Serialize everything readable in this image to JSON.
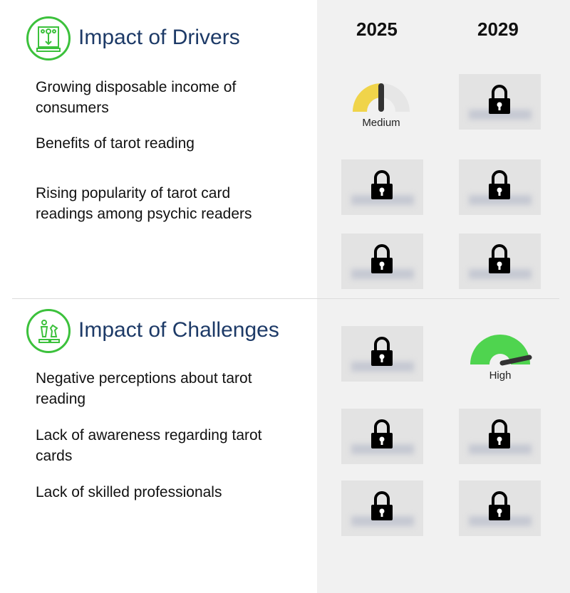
{
  "years": [
    "2025",
    "2029"
  ],
  "drivers": {
    "title": "Impact of Drivers",
    "icon": "drivers-icon",
    "items": [
      "Growing disposable income of consumers",
      "Benefits of tarot reading",
      "Rising popularity of tarot card readings among psychic readers"
    ]
  },
  "challenges": {
    "title": "Impact of Challenges",
    "icon": "chess-icon",
    "items": [
      "Negative perceptions about tarot reading",
      "Lack of awareness regarding tarot cards",
      "Lack of skilled professionals"
    ]
  },
  "gauges": {
    "medium": {
      "label": "Medium",
      "color": "#f0d44a",
      "level": "medium"
    },
    "high": {
      "label": "High",
      "color": "#4fd44f",
      "level": "high"
    }
  },
  "locked_icon": "lock-icon"
}
